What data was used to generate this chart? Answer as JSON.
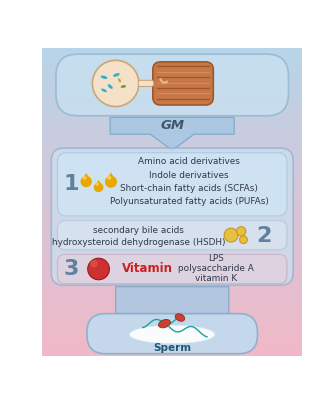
{
  "bg_top_color": "#b8d4e8",
  "bg_bottom_color": "#f0b8c0",
  "gm_box_color": "#c8e0f0",
  "gm_box_edge": "#90b8d0",
  "main_box_color": "#cce0f0",
  "main_box_edge": "#90b0cc",
  "row1_box_color": "#d0e8f8",
  "row1_box_edge": "#a0c4dc",
  "row2_box_color": "#dce8f4",
  "row2_box_edge": "#a8c0d8",
  "row3_box_color": "#e8d0dc",
  "row3_box_edge": "#c0a0b4",
  "sperm_box_color": "#c0ddf0",
  "sperm_box_edge": "#80b0cc",
  "arrow_color": "#a8c8e4",
  "arrow_edge": "#80a8c8",
  "row1_text": [
    "Amino acid derivatives",
    "Indole derivatives",
    "Short-chain fatty acids (SCFAs)",
    "Polyunsaturated fatty acids (PUFAs)"
  ],
  "row2_text": [
    "secondary bile acids",
    "hydroxysteroid dehydrogenase (HSDH)"
  ],
  "row3_left_red": "Vitamin",
  "row3_right": [
    "LPS",
    "polysaccharide A",
    "vitamin K"
  ],
  "gm_label": "GM",
  "sperm_label": "Sperm",
  "num1": "1",
  "num2": "2",
  "num3": "3",
  "drop_color": "#e8a800",
  "bile_color": "#e8c040",
  "vitamin_color": "#cc3030",
  "vitamin_text_color": "#cc2020",
  "num_color": "#6080a0",
  "text_color": "#303848"
}
